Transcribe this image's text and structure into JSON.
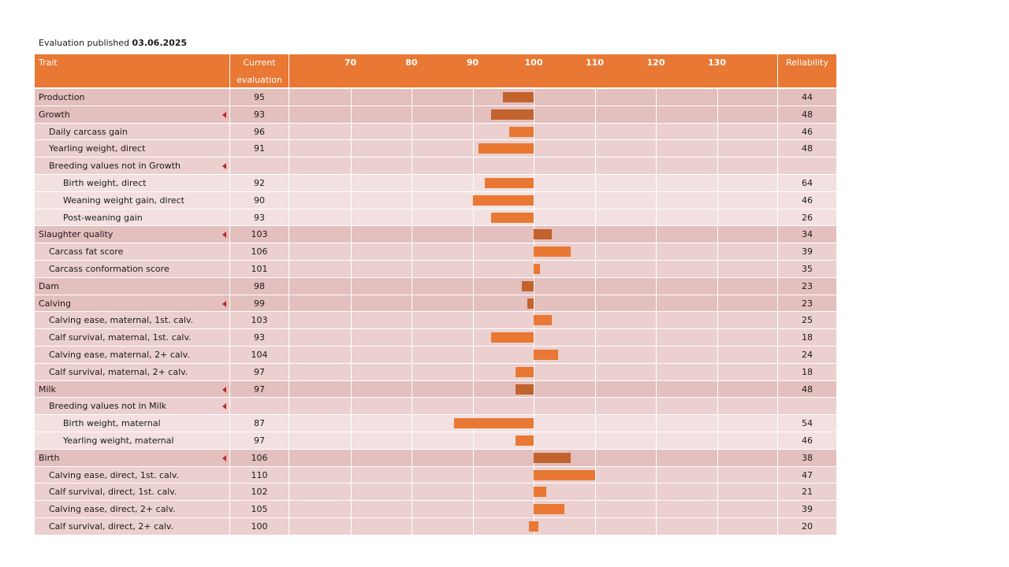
{
  "publication": {
    "label": "Evaluation published",
    "date": "03.06.2025"
  },
  "header": {
    "trait": "Trait",
    "current_line1": "Current",
    "current_line2": "evaluation",
    "reliability": "Reliability",
    "ticks": [
      "70",
      "80",
      "90",
      "100",
      "110",
      "120",
      "130"
    ]
  },
  "colors": {
    "header": "#e87833",
    "bar_group": "#c2622d",
    "bar_sub": "#e87833",
    "arrow": "#c0262a"
  },
  "rows": [
    {
      "name": "Production",
      "level": 0,
      "value": 95,
      "reliability": 44,
      "arrow": false
    },
    {
      "name": "Growth",
      "level": 0,
      "value": 93,
      "reliability": 48,
      "arrow": true
    },
    {
      "name": "Daily carcass gain",
      "level": 1,
      "value": 96,
      "reliability": 46,
      "arrow": false
    },
    {
      "name": "Yearling weight, direct",
      "level": 1,
      "value": 91,
      "reliability": 48,
      "arrow": false
    },
    {
      "name": "Breeding values not in Growth",
      "level": 1,
      "value": null,
      "reliability": null,
      "arrow": true
    },
    {
      "name": "Birth weight, direct",
      "level": 2,
      "value": 92,
      "reliability": 64,
      "arrow": false
    },
    {
      "name": "Weaning weight gain, direct",
      "level": 2,
      "value": 90,
      "reliability": 46,
      "arrow": false
    },
    {
      "name": "Post-weaning gain",
      "level": 2,
      "value": 93,
      "reliability": 26,
      "arrow": false
    },
    {
      "name": "Slaughter quality",
      "level": 0,
      "value": 103,
      "reliability": 34,
      "arrow": true
    },
    {
      "name": "Carcass fat score",
      "level": 1,
      "value": 106,
      "reliability": 39,
      "arrow": false
    },
    {
      "name": "Carcass conformation score",
      "level": 1,
      "value": 101,
      "reliability": 35,
      "arrow": false
    },
    {
      "name": "Dam",
      "level": 0,
      "value": 98,
      "reliability": 23,
      "arrow": false
    },
    {
      "name": "Calving",
      "level": 0,
      "value": 99,
      "reliability": 23,
      "arrow": true
    },
    {
      "name": "Calving ease, maternal, 1st. calv.",
      "level": 1,
      "value": 103,
      "reliability": 25,
      "arrow": false
    },
    {
      "name": "Calf survival, maternal, 1st. calv.",
      "level": 1,
      "value": 93,
      "reliability": 18,
      "arrow": false
    },
    {
      "name": "Calving ease, maternal, 2+ calv.",
      "level": 1,
      "value": 104,
      "reliability": 24,
      "arrow": false
    },
    {
      "name": "Calf survival, maternal, 2+ calv.",
      "level": 1,
      "value": 97,
      "reliability": 18,
      "arrow": false
    },
    {
      "name": "Milk",
      "level": 0,
      "value": 97,
      "reliability": 48,
      "arrow": true
    },
    {
      "name": "Breeding values not in Milk",
      "level": 1,
      "value": null,
      "reliability": null,
      "arrow": true
    },
    {
      "name": "Birth weight, maternal",
      "level": 2,
      "value": 87,
      "reliability": 54,
      "arrow": false
    },
    {
      "name": "Yearling weight, maternal",
      "level": 2,
      "value": 97,
      "reliability": 46,
      "arrow": false
    },
    {
      "name": "Birth",
      "level": 0,
      "value": 106,
      "reliability": 38,
      "arrow": true
    },
    {
      "name": "Calving ease, direct, 1st. calv.",
      "level": 1,
      "value": 110,
      "reliability": 47,
      "arrow": false
    },
    {
      "name": "Calf survival, direct, 1st. calv.",
      "level": 1,
      "value": 102,
      "reliability": 21,
      "arrow": false
    },
    {
      "name": "Calving ease, direct, 2+ calv.",
      "level": 1,
      "value": 105,
      "reliability": 39,
      "arrow": false
    },
    {
      "name": "Calf survival, direct, 2+ calv.",
      "level": 1,
      "value": 100,
      "reliability": 20,
      "arrow": false
    }
  ]
}
